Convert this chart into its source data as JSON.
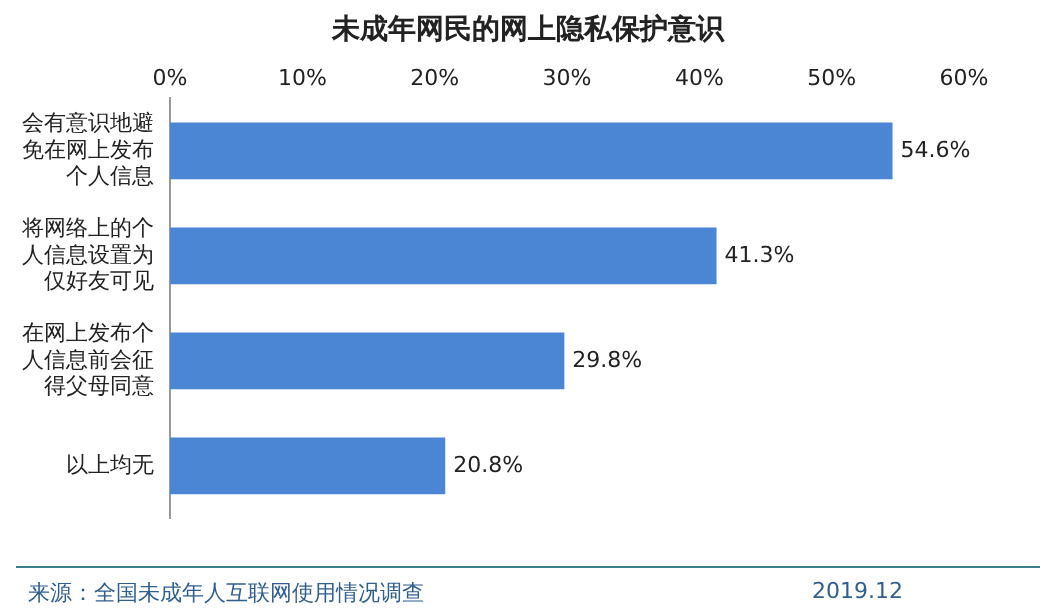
{
  "chart_data": {
    "type": "bar",
    "orientation": "horizontal",
    "title": "未成年网民的网上隐私保护意识",
    "categories": [
      "会有意识地避免在网上发布个人信息",
      "将网络上的个人信息设置为仅好友可见",
      "在网上发布个人信息前会征得父母同意",
      "以上均无"
    ],
    "values": [
      54.6,
      41.3,
      29.8,
      20.8
    ],
    "value_labels": [
      "54.6%",
      "41.3%",
      "29.8%",
      "20.8%"
    ],
    "color": "#4a86d4",
    "xlim": [
      0,
      60
    ],
    "xticks": [
      {
        "value": 0,
        "label": "0%"
      },
      {
        "value": 10,
        "label": "10%"
      },
      {
        "value": 20,
        "label": "20%"
      },
      {
        "value": 30,
        "label": "30%"
      },
      {
        "value": 40,
        "label": "40%"
      },
      {
        "value": 50,
        "label": "50%"
      },
      {
        "value": 60,
        "label": "60%"
      }
    ],
    "grid": false,
    "legend": false,
    "annotations": [
      "来源：全国未成年人互联网使用情况调查",
      "2019.12"
    ]
  }
}
